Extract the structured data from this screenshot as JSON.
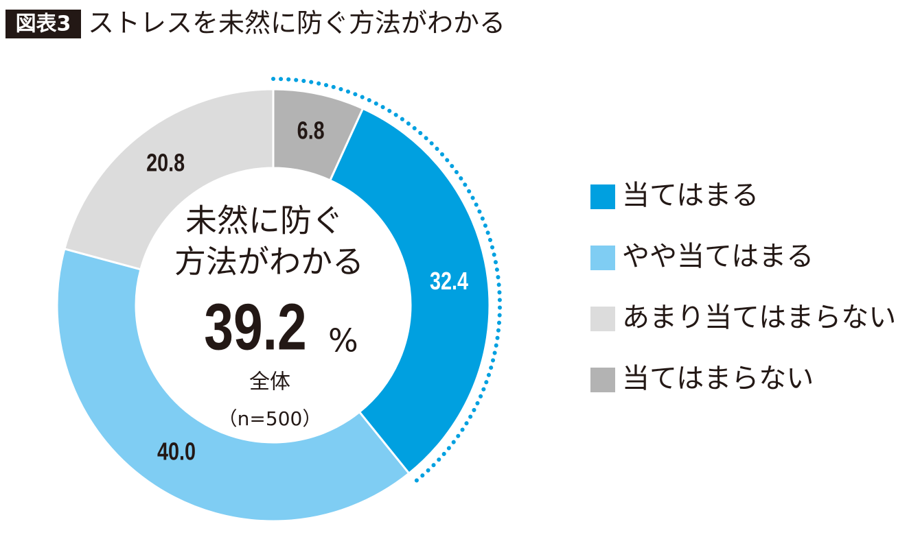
{
  "chart_data": {
    "type": "donut",
    "badge": "図表3",
    "title": "ストレスを未然に防ぐ方法がわかる",
    "center_lines": [
      "未然に防ぐ",
      "方法がわかる"
    ],
    "center_value": 39.2,
    "center_unit": "%",
    "center_caption": "全体",
    "center_note": "（n=500）",
    "categories": [
      "当てはまる",
      "やや当てはまる",
      "あまり当てはまらない",
      "当てはまらない"
    ],
    "values": [
      32.4,
      40.0,
      20.8,
      6.8
    ],
    "value_labels": [
      "32.4",
      "40.0",
      "20.8",
      "6.8"
    ],
    "colors": [
      "#00a0e0",
      "#7fcdf3",
      "#dcdcdc",
      "#b3b3b3"
    ],
    "label_colors": [
      "#ffffff",
      "#231815",
      "#231815",
      "#231815"
    ],
    "legend": "right"
  }
}
